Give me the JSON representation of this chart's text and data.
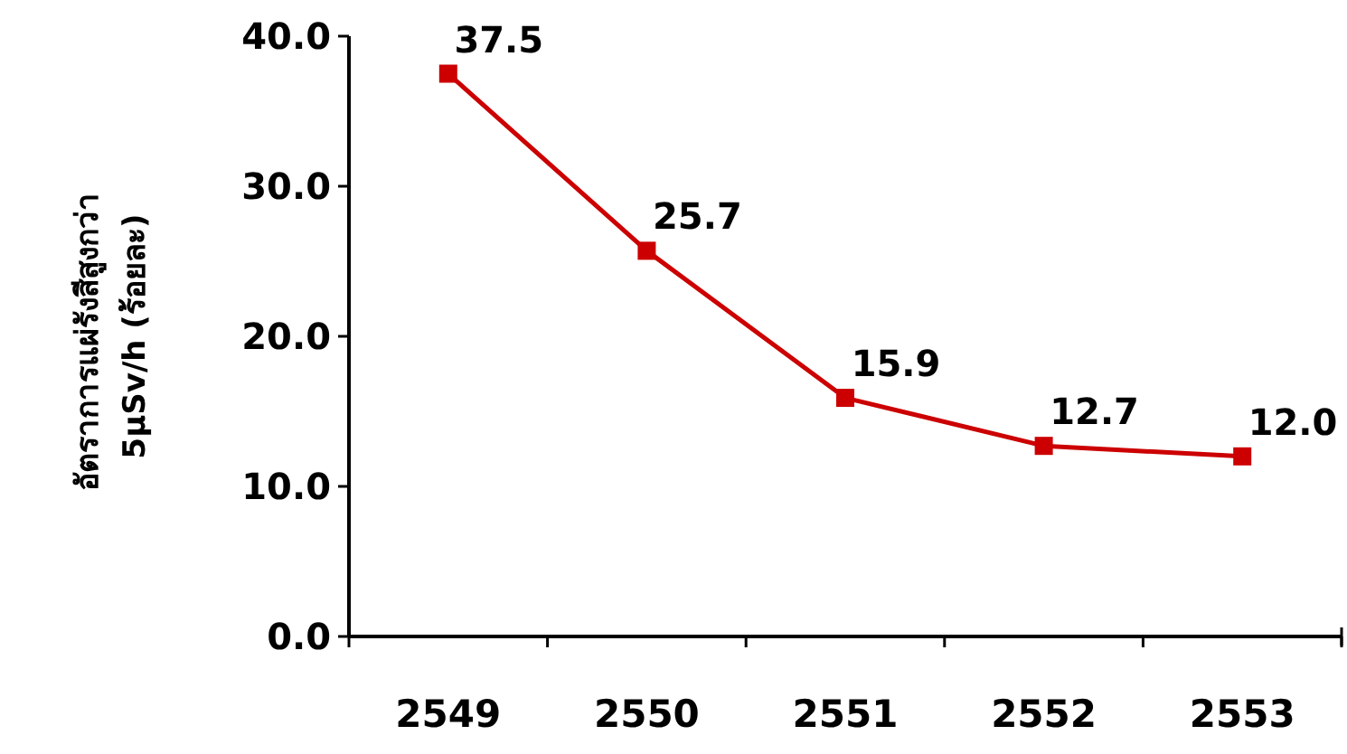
{
  "chart_data": {
    "type": "line",
    "ylabel": "อัตราการแผ่รังสีสูงกว่า 5μSv/h (ร้อยละ)",
    "categories": [
      "2549",
      "2550",
      "2551",
      "2552",
      "2553"
    ],
    "series": [
      {
        "color": "#cc0000",
        "values": [
          37.5,
          25.7,
          15.9,
          12.7,
          12.0
        ],
        "value_labels": [
          "37.5",
          "25.7",
          "15.9",
          "12.7",
          "12.0"
        ]
      }
    ],
    "ylim": [
      0,
      40
    ],
    "yticks": [
      {
        "value": 0,
        "label": "0.0"
      },
      {
        "value": 10,
        "label": "10.0"
      },
      {
        "value": 20,
        "label": "20.0"
      },
      {
        "value": 30,
        "label": "30.0"
      },
      {
        "value": 40,
        "label": "40.0"
      }
    ],
    "marker": "square",
    "line_style": "solid",
    "grid": false
  }
}
